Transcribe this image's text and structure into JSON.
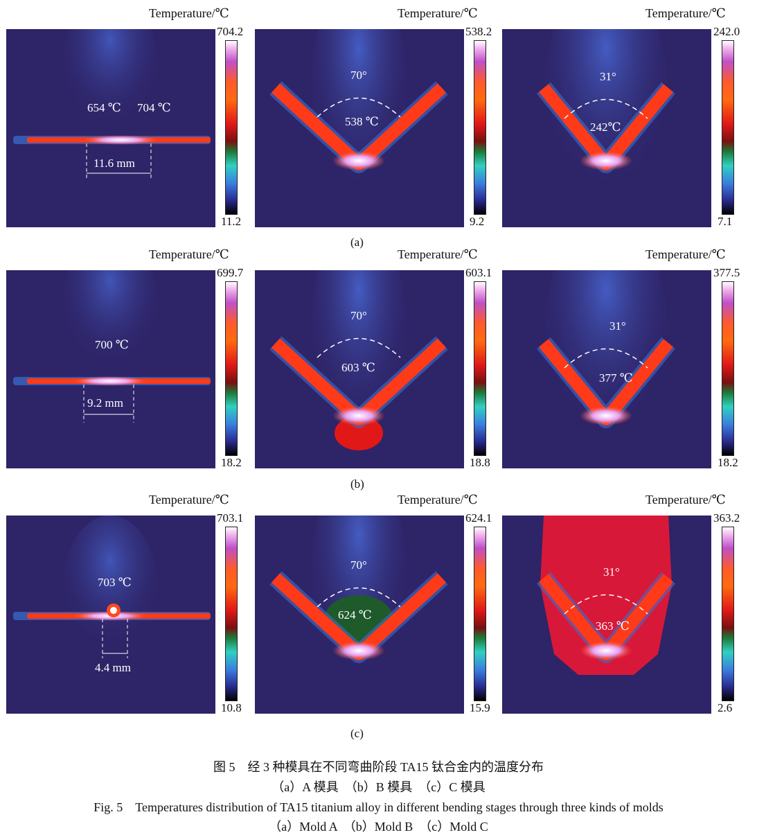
{
  "title_label": "Temperature/℃",
  "rows": [
    {
      "label": "(a)",
      "panels": [
        {
          "max": "704.2",
          "min": "11.2",
          "temps": [
            "654 ℃",
            "704 ℃"
          ],
          "dimension": "11.6 mm"
        },
        {
          "max": "538.2",
          "min": "9.2",
          "angle": "70°",
          "temps": [
            "538 ℃"
          ]
        },
        {
          "max": "242.0",
          "min": "7.1",
          "angle": "31°",
          "temps": [
            "242℃"
          ]
        }
      ]
    },
    {
      "label": "(b)",
      "panels": [
        {
          "max": "699.7",
          "min": "18.2",
          "temps": [
            "700 ℃"
          ],
          "dimension": "9.2 mm"
        },
        {
          "max": "603.1",
          "min": "18.8",
          "angle": "70°",
          "temps": [
            "603 ℃"
          ]
        },
        {
          "max": "377.5",
          "min": "18.2",
          "angle": "31°",
          "temps": [
            "377 ℃"
          ]
        }
      ]
    },
    {
      "label": "(c)",
      "panels": [
        {
          "max": "703.1",
          "min": "10.8",
          "temps": [
            "703 ℃"
          ],
          "dimension": "4.4 mm"
        },
        {
          "max": "624.1",
          "min": "15.9",
          "angle": "70°",
          "temps": [
            "624 ℃"
          ]
        },
        {
          "max": "363.2",
          "min": "2.6",
          "angle": "31°",
          "temps": [
            "363 ℃"
          ]
        }
      ]
    }
  ],
  "caption": {
    "cn_title": "图 5　经 3 种模具在不同弯曲阶段 TA15 钛合金内的温度分布",
    "cn_sub": "（a）A 模具　（b）B 模具　（c）C 模具",
    "en_title": "Fig. 5　Temperatures distribution of TA15 titanium alloy in different bending stages through three kinds of molds",
    "en_sub": "（a）Mold A　（b）Mold B　（c）Mold C"
  }
}
